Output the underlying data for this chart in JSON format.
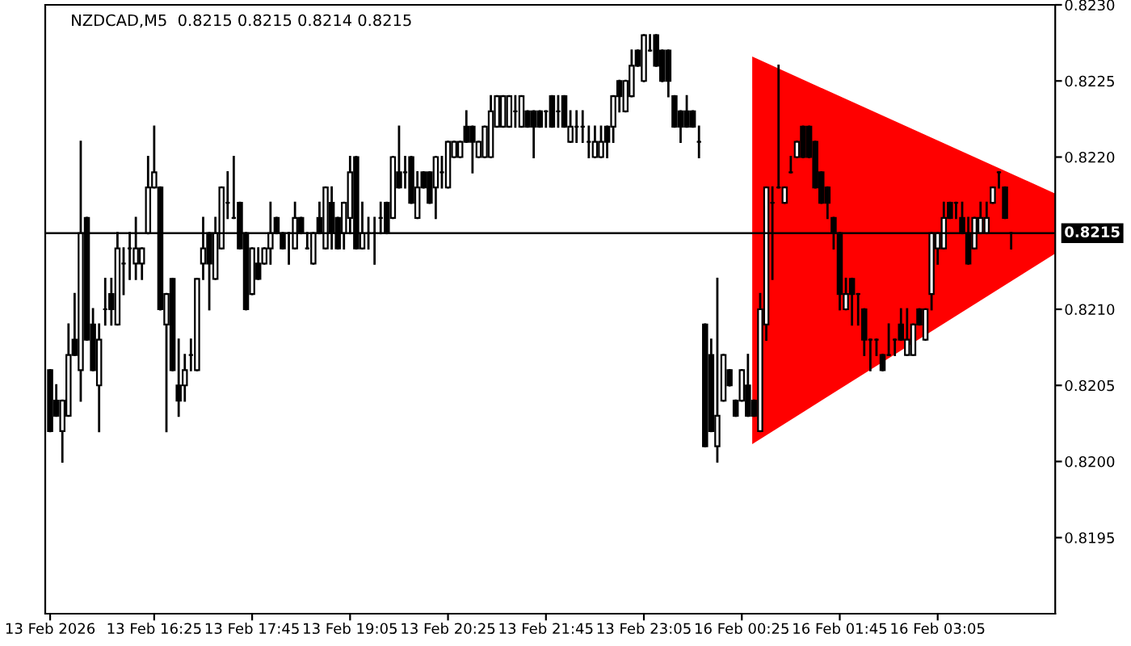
{
  "chart_data": {
    "type": "candlestick",
    "title": "NZDCAD,M5  0.8215 0.8215 0.8214 0.8215",
    "categories": [
      "13 Feb 2026",
      null,
      null,
      null,
      null,
      null,
      null,
      null,
      null,
      null,
      null,
      null,
      null,
      null,
      null,
      null,
      null,
      "13 Feb 16:25",
      null,
      null,
      null,
      null,
      null,
      null,
      null,
      null,
      null,
      null,
      null,
      null,
      null,
      null,
      null,
      "13 Feb 17:45",
      null,
      null,
      null,
      null,
      null,
      null,
      null,
      null,
      null,
      null,
      null,
      null,
      null,
      null,
      null,
      "13 Feb 19:05",
      null,
      null,
      null,
      null,
      null,
      null,
      null,
      null,
      null,
      null,
      null,
      null,
      null,
      null,
      null,
      "13 Feb 20:25",
      null,
      null,
      null,
      null,
      null,
      null,
      null,
      null,
      null,
      null,
      null,
      null,
      null,
      null,
      null,
      "13 Feb 21:45",
      null,
      null,
      null,
      null,
      null,
      null,
      null,
      null,
      null,
      null,
      null,
      null,
      null,
      null,
      null,
      "13 Feb 23:05",
      null,
      null,
      null,
      null,
      null,
      null,
      null,
      null,
      null,
      null,
      null,
      null,
      null,
      null,
      null,
      "16 Feb 00:25",
      null,
      null,
      null,
      null,
      null,
      null,
      null,
      null,
      null,
      null,
      null,
      null,
      null,
      null,
      null,
      "16 Feb 01:45",
      null,
      null,
      null,
      null,
      null,
      null,
      null,
      null,
      null,
      null,
      null,
      null,
      null,
      null,
      null,
      "16 Feb 03:05",
      null,
      null,
      null,
      null,
      null,
      null,
      null,
      null,
      null,
      null,
      null,
      null
    ],
    "ohlc": [
      [
        0.8206,
        0.8206,
        0.8202,
        0.8202
      ],
      [
        0.8204,
        0.8205,
        0.8203,
        0.8203
      ],
      [
        0.8202,
        0.8204,
        0.82,
        0.8204
      ],
      [
        0.8203,
        0.8209,
        0.8203,
        0.8207
      ],
      [
        0.8208,
        0.8211,
        0.8207,
        0.8207
      ],
      [
        0.8206,
        0.8221,
        0.8204,
        0.8215
      ],
      [
        0.8216,
        0.8216,
        0.8208,
        0.8208
      ],
      [
        0.8209,
        0.821,
        0.8206,
        0.8206
      ],
      [
        0.8205,
        0.8209,
        0.8202,
        0.8208
      ],
      [
        0.821,
        0.8212,
        0.8209,
        0.821
      ],
      [
        0.8211,
        0.8212,
        0.8209,
        0.821
      ],
      [
        0.8209,
        0.8215,
        0.8209,
        0.8214
      ],
      [
        0.8213,
        0.8214,
        0.8211,
        0.8213
      ],
      [
        0.8214,
        0.8215,
        0.8212,
        0.8214
      ],
      [
        0.8213,
        0.8216,
        0.8212,
        0.8214
      ],
      [
        0.8213,
        0.8214,
        0.8212,
        0.8214
      ],
      [
        0.8215,
        0.822,
        0.8215,
        0.8218
      ],
      [
        0.8218,
        0.8222,
        0.8218,
        0.8219
      ],
      [
        0.8218,
        0.8218,
        0.821,
        0.821
      ],
      [
        0.8209,
        0.8211,
        0.8202,
        0.8211
      ],
      [
        0.8212,
        0.8212,
        0.8206,
        0.8206
      ],
      [
        0.8205,
        0.8208,
        0.8203,
        0.8204
      ],
      [
        0.8205,
        0.8207,
        0.8204,
        0.8206
      ],
      [
        0.8207,
        0.8208,
        0.8206,
        0.8207
      ],
      [
        0.8206,
        0.8212,
        0.8206,
        0.8212
      ],
      [
        0.8213,
        0.8216,
        0.8212,
        0.8214
      ],
      [
        0.8215,
        0.8215,
        0.821,
        0.8213
      ],
      [
        0.8212,
        0.8216,
        0.8212,
        0.8215
      ],
      [
        0.8214,
        0.8218,
        0.8214,
        0.8218
      ],
      [
        0.8217,
        0.8219,
        0.8216,
        0.8217
      ],
      [
        0.8216,
        0.822,
        0.8216,
        0.8216
      ],
      [
        0.8217,
        0.8217,
        0.8214,
        0.8214
      ],
      [
        0.8215,
        0.8215,
        0.821,
        0.821
      ],
      [
        0.8211,
        0.8214,
        0.8211,
        0.8214
      ],
      [
        0.8213,
        0.8214,
        0.8212,
        0.8212
      ],
      [
        0.8213,
        0.8214,
        0.8213,
        0.8214
      ],
      [
        0.8214,
        0.8217,
        0.8213,
        0.8215
      ],
      [
        0.8216,
        0.8216,
        0.8215,
        0.8215
      ],
      [
        0.8215,
        0.8215,
        0.8214,
        0.8214
      ],
      [
        0.8215,
        0.8215,
        0.8213,
        0.8215
      ],
      [
        0.8214,
        0.8217,
        0.8214,
        0.8216
      ],
      [
        0.8216,
        0.8216,
        0.8215,
        0.8215
      ],
      [
        0.8214,
        0.8215,
        0.8214,
        0.8214
      ],
      [
        0.8213,
        0.8215,
        0.8213,
        0.8215
      ],
      [
        0.8216,
        0.8217,
        0.8215,
        0.8215
      ],
      [
        0.8214,
        0.8218,
        0.8214,
        0.8218
      ],
      [
        0.8217,
        0.8218,
        0.8214,
        0.8215
      ],
      [
        0.8216,
        0.8216,
        0.8214,
        0.8214
      ],
      [
        0.8215,
        0.8217,
        0.8214,
        0.8217
      ],
      [
        0.8216,
        0.822,
        0.8215,
        0.8219
      ],
      [
        0.822,
        0.822,
        0.8214,
        0.8214
      ],
      [
        0.8214,
        0.8217,
        0.8214,
        0.8215
      ],
      [
        0.8215,
        0.8216,
        0.8214,
        0.8215
      ],
      [
        0.8215,
        0.8216,
        0.8213,
        0.8215
      ],
      [
        0.8216,
        0.8217,
        0.8215,
        0.8216
      ],
      [
        0.8217,
        0.8217,
        0.8215,
        0.8215
      ],
      [
        0.8216,
        0.822,
        0.8216,
        0.822
      ],
      [
        0.8219,
        0.8222,
        0.8218,
        0.8218
      ],
      [
        0.8219,
        0.822,
        0.8218,
        0.8219
      ],
      [
        0.822,
        0.822,
        0.8217,
        0.8217
      ],
      [
        0.8216,
        0.8219,
        0.8216,
        0.8218
      ],
      [
        0.8219,
        0.8219,
        0.8218,
        0.8218
      ],
      [
        0.8219,
        0.8219,
        0.8217,
        0.8217
      ],
      [
        0.8218,
        0.822,
        0.8216,
        0.822
      ],
      [
        0.8219,
        0.822,
        0.8218,
        0.8219
      ],
      [
        0.8218,
        0.8221,
        0.8218,
        0.8221
      ],
      [
        0.822,
        0.8221,
        0.822,
        0.8221
      ],
      [
        0.822,
        0.8221,
        0.822,
        0.8221
      ],
      [
        0.8222,
        0.8223,
        0.8221,
        0.8221
      ],
      [
        0.8222,
        0.8222,
        0.8219,
        0.8221
      ],
      [
        0.822,
        0.8221,
        0.822,
        0.8221
      ],
      [
        0.822,
        0.8222,
        0.822,
        0.8222
      ],
      [
        0.822,
        0.8224,
        0.822,
        0.8223
      ],
      [
        0.8222,
        0.8224,
        0.8222,
        0.8224
      ],
      [
        0.8222,
        0.8224,
        0.8222,
        0.8224
      ],
      [
        0.8222,
        0.8224,
        0.8222,
        0.8224
      ],
      [
        0.8223,
        0.8224,
        0.8222,
        0.8223
      ],
      [
        0.8222,
        0.8224,
        0.8222,
        0.8224
      ],
      [
        0.8223,
        0.8223,
        0.8222,
        0.8222
      ],
      [
        0.8223,
        0.8223,
        0.822,
        0.8222
      ],
      [
        0.8223,
        0.8223,
        0.8222,
        0.8222
      ],
      [
        0.8223,
        0.8223,
        0.8222,
        0.8223
      ],
      [
        0.8224,
        0.8224,
        0.8222,
        0.8222
      ],
      [
        0.8223,
        0.8224,
        0.8222,
        0.8223
      ],
      [
        0.8224,
        0.8224,
        0.8222,
        0.8222
      ],
      [
        0.8221,
        0.8223,
        0.8221,
        0.8222
      ],
      [
        0.8222,
        0.8223,
        0.8221,
        0.8222
      ],
      [
        0.8222,
        0.8223,
        0.8221,
        0.8222
      ],
      [
        0.8221,
        0.8222,
        0.822,
        0.8221
      ],
      [
        0.822,
        0.8222,
        0.822,
        0.8221
      ],
      [
        0.822,
        0.8222,
        0.822,
        0.8221
      ],
      [
        0.8222,
        0.8222,
        0.822,
        0.8221
      ],
      [
        0.8222,
        0.8224,
        0.8221,
        0.8224
      ],
      [
        0.8225,
        0.8225,
        0.8223,
        0.8224
      ],
      [
        0.8223,
        0.8225,
        0.8223,
        0.8225
      ],
      [
        0.8224,
        0.8227,
        0.8224,
        0.8226
      ],
      [
        0.8227,
        0.8227,
        0.8226,
        0.8226
      ],
      [
        0.8225,
        0.8228,
        0.8225,
        0.8228
      ],
      [
        0.8227,
        0.8228,
        0.8227,
        0.8227
      ],
      [
        0.8228,
        0.8228,
        0.8226,
        0.8226
      ],
      [
        0.8227,
        0.8227,
        0.8225,
        0.8225
      ],
      [
        0.8227,
        0.8227,
        0.8224,
        0.8225
      ],
      [
        0.8224,
        0.8224,
        0.8222,
        0.8222
      ],
      [
        0.8223,
        0.8223,
        0.8221,
        0.8222
      ],
      [
        0.8223,
        0.8224,
        0.8222,
        0.8222
      ],
      [
        0.8223,
        0.8223,
        0.8222,
        0.8222
      ],
      [
        0.8221,
        0.8222,
        0.822,
        0.8221
      ],
      [
        0.8209,
        0.8209,
        0.8201,
        0.8201
      ],
      [
        0.8207,
        0.8208,
        0.8202,
        0.8202
      ],
      [
        0.8201,
        0.8212,
        0.82,
        0.8203
      ],
      [
        0.8204,
        0.8207,
        0.8204,
        0.8207
      ],
      [
        0.8206,
        0.8206,
        0.8205,
        0.8205
      ],
      [
        0.8204,
        0.8204,
        0.8203,
        0.8203
      ],
      [
        0.8204,
        0.8206,
        0.8204,
        0.8206
      ],
      [
        0.8205,
        0.8207,
        0.8203,
        0.8203
      ],
      [
        0.8204,
        0.8204,
        0.8203,
        0.8203
      ],
      [
        0.8202,
        0.8211,
        0.8202,
        0.821
      ],
      [
        0.8209,
        0.8218,
        0.8208,
        0.8218
      ],
      [
        0.8217,
        0.8218,
        0.8212,
        0.8217
      ],
      [
        0.8218,
        0.8226,
        0.8218,
        0.8218
      ],
      [
        0.8217,
        0.8218,
        0.8217,
        0.8218
      ],
      [
        0.8219,
        0.822,
        0.8219,
        0.8219
      ],
      [
        0.822,
        0.8221,
        0.822,
        0.8221
      ],
      [
        0.8222,
        0.8222,
        0.822,
        0.822
      ],
      [
        0.8222,
        0.8222,
        0.822,
        0.822
      ],
      [
        0.8221,
        0.8221,
        0.8218,
        0.8218
      ],
      [
        0.8219,
        0.8219,
        0.8217,
        0.8217
      ],
      [
        0.8218,
        0.8218,
        0.8216,
        0.8217
      ],
      [
        0.8216,
        0.8216,
        0.8214,
        0.8215
      ],
      [
        0.8215,
        0.8215,
        0.821,
        0.8211
      ],
      [
        0.821,
        0.8212,
        0.821,
        0.8211
      ],
      [
        0.8212,
        0.8212,
        0.8209,
        0.8211
      ],
      [
        0.8211,
        0.8211,
        0.8209,
        0.8211
      ],
      [
        0.821,
        0.821,
        0.8207,
        0.8208
      ],
      [
        0.8208,
        0.8208,
        0.8206,
        0.8208
      ],
      [
        0.8208,
        0.8208,
        0.8207,
        0.8208
      ],
      [
        0.8207,
        0.8207,
        0.8206,
        0.8206
      ],
      [
        0.8207,
        0.8209,
        0.8207,
        0.8207
      ],
      [
        0.8208,
        0.8208,
        0.8207,
        0.8208
      ],
      [
        0.8209,
        0.821,
        0.8208,
        0.8208
      ],
      [
        0.8207,
        0.821,
        0.8207,
        0.8208
      ],
      [
        0.8207,
        0.8209,
        0.8207,
        0.8209
      ],
      [
        0.821,
        0.821,
        0.8209,
        0.8209
      ],
      [
        0.8208,
        0.821,
        0.8208,
        0.821
      ],
      [
        0.8211,
        0.8215,
        0.821,
        0.8215
      ],
      [
        0.8214,
        0.8215,
        0.8213,
        0.8215
      ],
      [
        0.8214,
        0.8217,
        0.8214,
        0.8216
      ],
      [
        0.8217,
        0.8217,
        0.8216,
        0.8216
      ],
      [
        0.8217,
        0.8217,
        0.8216,
        0.8217
      ],
      [
        0.8216,
        0.8217,
        0.8215,
        0.8215
      ],
      [
        0.8215,
        0.8216,
        0.8213,
        0.8213
      ],
      [
        0.8214,
        0.8216,
        0.8214,
        0.8216
      ],
      [
        0.8215,
        0.8217,
        0.8215,
        0.8216
      ],
      [
        0.8215,
        0.8217,
        0.8215,
        0.8216
      ],
      [
        0.8217,
        0.8218,
        0.8217,
        0.8218
      ],
      [
        0.8219,
        0.8219,
        0.8218,
        0.8219
      ],
      [
        0.8218,
        0.8218,
        0.8216,
        0.8216
      ],
      [
        0.8215,
        0.8215,
        0.8214,
        0.8215
      ]
    ],
    "ylim": [
      0.819,
      0.823
    ],
    "yticks": [
      0.8195,
      {
        "value": 0.82,
        "label": "0.8200"
      },
      0.8205,
      {
        "value": 0.821,
        "label": "0.8210"
      },
      {
        "value": 0.822,
        "label": "0.8220"
      },
      0.8225,
      {
        "value": 0.823,
        "label": "0.8230"
      }
    ],
    "ref_lines": [
      {
        "axis": "y",
        "value": 0.8215,
        "label": "0.8215",
        "color": "#000000"
      }
    ],
    "grid": false,
    "legend": false
  }
}
